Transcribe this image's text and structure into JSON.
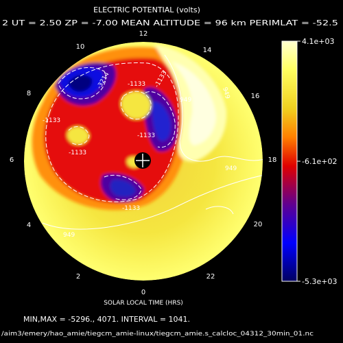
{
  "chart_data": {
    "type": "heatmap",
    "title": "ELECTRIC POTENTIAL (volts)",
    "subtitle": "2  UT =  2.50  ZP =  -7.00  MEAN ALTITUDE =  96 km  PERIMLAT = -52.5",
    "xlabel": "SOLAR LOCAL TIME (HRS)",
    "ylabel": "",
    "colorbar": {
      "ticks": [
        "4.1e+03",
        "-6.1e+02",
        "-5.3e+03"
      ],
      "min": -5300,
      "max": 4100,
      "colors": [
        "#FFFFD0",
        "#FFFF60",
        "#F0D020",
        "#FF8000",
        "#E00000",
        "#600090",
        "#0000FF",
        "#000060"
      ]
    },
    "local_time_labels": [
      "12",
      "14",
      "16",
      "18",
      "20",
      "22",
      "0",
      "2",
      "4",
      "6",
      "8",
      "10"
    ],
    "contour_labels": [
      "-3214",
      "-1133",
      "-1133",
      "-1133",
      "-1133",
      "-1133",
      "949",
      "949",
      "949",
      "949",
      "-1133"
    ],
    "min": -5296,
    "max": 4071,
    "interval": 1041,
    "stats_line": "MIN,MAX =      -5296.,      4071. INTERVAL =      1041.",
    "footer": "/aim3/emery/hao_amie/tiegcm_amie-linux/tiegcm_amie.s_calcloc_04312_30min_01.nc"
  },
  "colors": {
    "background": "#000000",
    "text": "#FFFFFF"
  }
}
